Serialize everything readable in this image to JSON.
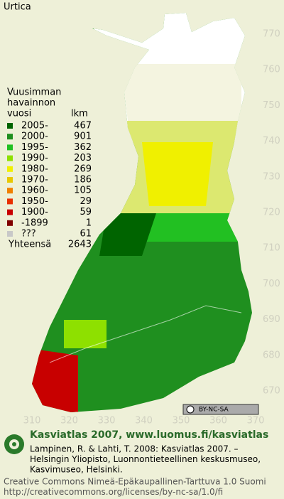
{
  "title": "Urtica",
  "legend": {
    "heading": [
      "Vuusimman",
      "havainnon",
      "vuosi"
    ],
    "count_heading": "lkm",
    "items": [
      {
        "label": "2005-",
        "count": 467,
        "color": "#006400"
      },
      {
        "label": "2000-",
        "count": 901,
        "color": "#1f8f1f"
      },
      {
        "label": "1995-",
        "count": 362,
        "color": "#22c022"
      },
      {
        "label": "1990-",
        "count": 203,
        "color": "#8ee000"
      },
      {
        "label": "1980-",
        "count": 269,
        "color": "#f0f000"
      },
      {
        "label": "1970-",
        "count": 186,
        "color": "#e8c800"
      },
      {
        "label": "1960-",
        "count": 105,
        "color": "#f08000"
      },
      {
        "label": "1950-",
        "count": 29,
        "color": "#e83000"
      },
      {
        "label": "1900-",
        "count": 59,
        "color": "#c80000"
      },
      {
        "label": "-1899",
        "count": 1,
        "color": "#800000"
      },
      {
        "label": "???",
        "count": 61,
        "color": "#c8c8c8"
      }
    ],
    "total_label": "Yhteensä",
    "total": 2643
  },
  "grid": {
    "y_labels": [
      770,
      760,
      750,
      740,
      730,
      720,
      710,
      700,
      690,
      680,
      670
    ],
    "x_labels": [
      310,
      320,
      330,
      340,
      350,
      360,
      370
    ]
  },
  "badge": "BY-NC-SA",
  "footer": {
    "site": "Kasviatlas 2007, www.luomus.fi/kasviatlas",
    "citation": [
      "Lampinen, R. & Lahti, T. 2008: Kasviatlas 2007. –",
      "Helsingin Yliopisto, Luonnontieteellinen keskusmuseo,",
      "Kasvimuseo, Helsinki."
    ],
    "license": [
      "Creative Commons Nimeä-Epäkaupallinen-Tarttuva 1.0 Suomi",
      "http://creativecommons.org/licenses/by-nc-sa/1.0/fi"
    ]
  }
}
